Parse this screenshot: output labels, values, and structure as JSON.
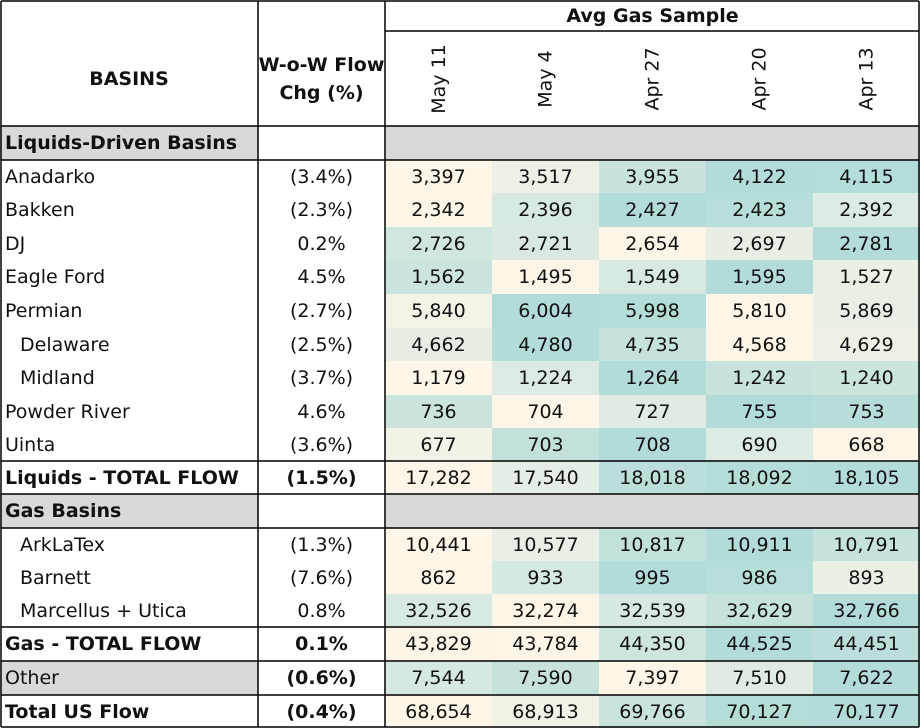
{
  "header": {
    "group_title": "Avg Gas Sample",
    "basins_label": "BASINS",
    "chg_label_line1": "W-o-W Flow",
    "chg_label_line2": "Chg (%)",
    "dates": [
      "May 11",
      "May 4",
      "Apr 27",
      "Apr 20",
      "Apr 13"
    ]
  },
  "rows": [
    {
      "type": "section",
      "label": "Liquids-Driven Basins"
    },
    {
      "type": "data",
      "label": "Anadarko",
      "chg": "(3.4%)",
      "values": [
        "3,397",
        "3,517",
        "3,955",
        "4,122",
        "4,115"
      ],
      "colors": [
        "#fdf5e7",
        "#eef0e6",
        "#c8e3df",
        "#b3dcd8",
        "#b4dcd8"
      ]
    },
    {
      "type": "data",
      "label": "Bakken",
      "chg": "(2.3%)",
      "values": [
        "2,342",
        "2,396",
        "2,427",
        "2,423",
        "2,392"
      ],
      "colors": [
        "#fdf5e7",
        "#d8e9e2",
        "#b3dcd8",
        "#b8ded9",
        "#dcebe3"
      ]
    },
    {
      "type": "data",
      "label": "DJ",
      "chg": "0.2%",
      "values": [
        "2,726",
        "2,721",
        "2,654",
        "2,697",
        "2,781"
      ],
      "colors": [
        "#d2e6e0",
        "#d9e9e2",
        "#fdf5e7",
        "#e7eee4",
        "#b3dcd8"
      ]
    },
    {
      "type": "data",
      "label": "Eagle Ford",
      "chg": "4.5%",
      "values": [
        "1,562",
        "1,495",
        "1,549",
        "1,595",
        "1,527"
      ],
      "colors": [
        "#cbe4df",
        "#fdf5e7",
        "#d8e9e2",
        "#b3dcd8",
        "#ebf0e5"
      ]
    },
    {
      "type": "data",
      "label": "Permian",
      "chg": "(2.7%)",
      "values": [
        "5,840",
        "6,004",
        "5,998",
        "5,810",
        "5,869"
      ],
      "colors": [
        "#f5f2e6",
        "#b3dcd8",
        "#b5ddd8",
        "#fdf5e7",
        "#e8efe5"
      ]
    },
    {
      "type": "data",
      "label": "Delaware",
      "chg": "(2.5%)",
      "indent": true,
      "values": [
        "4,662",
        "4,780",
        "4,735",
        "4,568",
        "4,629"
      ],
      "colors": [
        "#e6eee4",
        "#b3dcd8",
        "#c6e2dd",
        "#fdf5e7",
        "#f0f1e6"
      ]
    },
    {
      "type": "data",
      "label": "Midland",
      "chg": "(3.7%)",
      "indent": true,
      "values": [
        "1,179",
        "1,224",
        "1,264",
        "1,242",
        "1,240"
      ],
      "colors": [
        "#fdf5e7",
        "#dbeae2",
        "#b3dcd8",
        "#c8e3de",
        "#cae4de"
      ]
    },
    {
      "type": "data",
      "label": "Powder River",
      "chg": "4.6%",
      "values": [
        "736",
        "704",
        "727",
        "755",
        "753"
      ],
      "colors": [
        "#cce4de",
        "#fdf5e7",
        "#e0ece3",
        "#b3dcd8",
        "#b7ddd8"
      ]
    },
    {
      "type": "data",
      "label": "Uinta",
      "chg": "(3.6%)",
      "values": [
        "677",
        "703",
        "708",
        "690",
        "668"
      ],
      "colors": [
        "#f3f2e6",
        "#c2e1dc",
        "#b3dcd8",
        "#dcebe3",
        "#fdf5e7"
      ]
    },
    {
      "type": "total",
      "label": "Liquids - TOTAL FLOW",
      "chg": "(1.5%)",
      "values": [
        "17,282",
        "17,540",
        "18,018",
        "18,092",
        "18,105"
      ],
      "colors": [
        "#fdf5e7",
        "#e5eee4",
        "#bcdeda",
        "#b5ddd8",
        "#b3dcd8"
      ]
    },
    {
      "type": "section",
      "label": "Gas Basins"
    },
    {
      "type": "data",
      "label": "ArkLaTex",
      "chg": "(1.3%)",
      "indent": true,
      "values": [
        "10,441",
        "10,577",
        "10,817",
        "10,911",
        "10,791"
      ],
      "colors": [
        "#fdf5e7",
        "#e9efe5",
        "#c2e1dc",
        "#b3dcd8",
        "#c6e2dd"
      ]
    },
    {
      "type": "data",
      "label": "Barnett",
      "chg": "(7.6%)",
      "indent": true,
      "values": [
        "862",
        "933",
        "995",
        "986",
        "893"
      ],
      "colors": [
        "#fdf5e7",
        "#d5e8e1",
        "#b3dcd8",
        "#b8ded9",
        "#ebf0e5"
      ]
    },
    {
      "type": "data",
      "label": "Marcellus + Utica",
      "chg": "0.8%",
      "indent": true,
      "values": [
        "32,526",
        "32,274",
        "32,539",
        "32,629",
        "32,766"
      ],
      "colors": [
        "#d8e9e2",
        "#fdf5e7",
        "#d6e8e1",
        "#c6e2dd",
        "#b3dcd8"
      ]
    },
    {
      "type": "total",
      "label": "Gas - TOTAL FLOW",
      "chg": "0.1%",
      "values": [
        "43,829",
        "43,784",
        "44,350",
        "44,525",
        "44,451"
      ],
      "colors": [
        "#fbf4e7",
        "#fdf5e7",
        "#cde4df",
        "#b3dcd8",
        "#bcdeda"
      ]
    },
    {
      "type": "other",
      "label": "Other",
      "chg": "(0.6%)",
      "values": [
        "7,544",
        "7,590",
        "7,397",
        "7,510",
        "7,622"
      ],
      "colors": [
        "#d5e8e1",
        "#c7e2dd",
        "#fdf5e7",
        "#dfebe3",
        "#b3dcd8"
      ]
    },
    {
      "type": "total",
      "label": "Total US Flow",
      "chg": "(0.4%)",
      "values": [
        "68,654",
        "68,913",
        "69,766",
        "70,127",
        "70,177"
      ],
      "colors": [
        "#fdf5e7",
        "#f1f1e6",
        "#c9e3de",
        "#b5ddd8",
        "#b3dcd8"
      ]
    }
  ]
}
